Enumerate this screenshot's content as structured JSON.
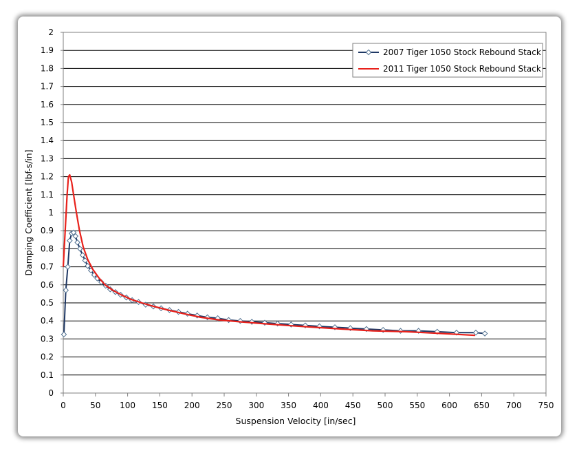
{
  "chart_data": {
    "type": "line",
    "title": "",
    "xlabel": "Suspension Velocity [in/sec]",
    "ylabel": "Damping Coefficient  [lbf-s/in]",
    "xlim": [
      0,
      750
    ],
    "ylim": [
      0,
      2
    ],
    "x_ticks": [
      "0",
      "50",
      "100",
      "150",
      "200",
      "250",
      "300",
      "350",
      "400",
      "450",
      "500",
      "550",
      "600",
      "650",
      "700",
      "750"
    ],
    "y_ticks": [
      "0",
      "0.1",
      "0.2",
      "0.3",
      "0.4",
      "0.5",
      "0.6",
      "0.7",
      "0.8",
      "0.9",
      "1",
      "1.1",
      "1.2",
      "1.3",
      "1.4",
      "1.5",
      "1.6",
      "1.7",
      "1.8",
      "1.9",
      "2"
    ],
    "grid": "horizontal major gridlines",
    "legend_position": "top-right",
    "series": [
      {
        "name": "2007 Tiger 1050 Stock Rebound Stack",
        "color": "#1f3864",
        "marker": "diamond",
        "x": [
          1,
          4,
          7,
          10,
          13,
          16,
          19,
          22,
          26,
          30,
          34,
          38,
          43,
          48,
          53,
          59,
          66,
          73,
          81,
          89,
          98,
          107,
          117,
          128,
          140,
          152,
          165,
          179,
          193,
          208,
          224,
          240,
          257,
          275,
          293,
          313,
          333,
          354,
          376,
          398,
          422,
          446,
          471,
          497,
          524,
          552,
          581,
          611,
          641,
          655
        ],
        "y": [
          0.325,
          0.57,
          0.7,
          0.845,
          0.885,
          0.89,
          0.87,
          0.835,
          0.8,
          0.765,
          0.735,
          0.705,
          0.68,
          0.655,
          0.635,
          0.615,
          0.595,
          0.575,
          0.56,
          0.545,
          0.53,
          0.515,
          0.505,
          0.49,
          0.48,
          0.47,
          0.46,
          0.45,
          0.44,
          0.43,
          0.42,
          0.415,
          0.405,
          0.4,
          0.395,
          0.39,
          0.385,
          0.38,
          0.375,
          0.37,
          0.365,
          0.36,
          0.355,
          0.35,
          0.345,
          0.345,
          0.34,
          0.335,
          0.335,
          0.33
        ]
      },
      {
        "name": "2011 Tiger 1050 Stock Rebound Stack",
        "color": "#e8211b",
        "marker": "none",
        "x": [
          0,
          3,
          6,
          8,
          10,
          13,
          16,
          20,
          25,
          31,
          38,
          46,
          55,
          65,
          77,
          90,
          105,
          122,
          141,
          163,
          187,
          214,
          243,
          275,
          310,
          348,
          389,
          433,
          481,
          533,
          588,
          640
        ],
        "y": [
          0.7,
          0.9,
          1.1,
          1.2,
          1.21,
          1.17,
          1.1,
          1.01,
          0.905,
          0.81,
          0.74,
          0.685,
          0.64,
          0.6,
          0.57,
          0.545,
          0.52,
          0.5,
          0.48,
          0.46,
          0.44,
          0.42,
          0.405,
          0.395,
          0.385,
          0.375,
          0.365,
          0.355,
          0.345,
          0.34,
          0.33,
          0.32
        ]
      }
    ]
  }
}
